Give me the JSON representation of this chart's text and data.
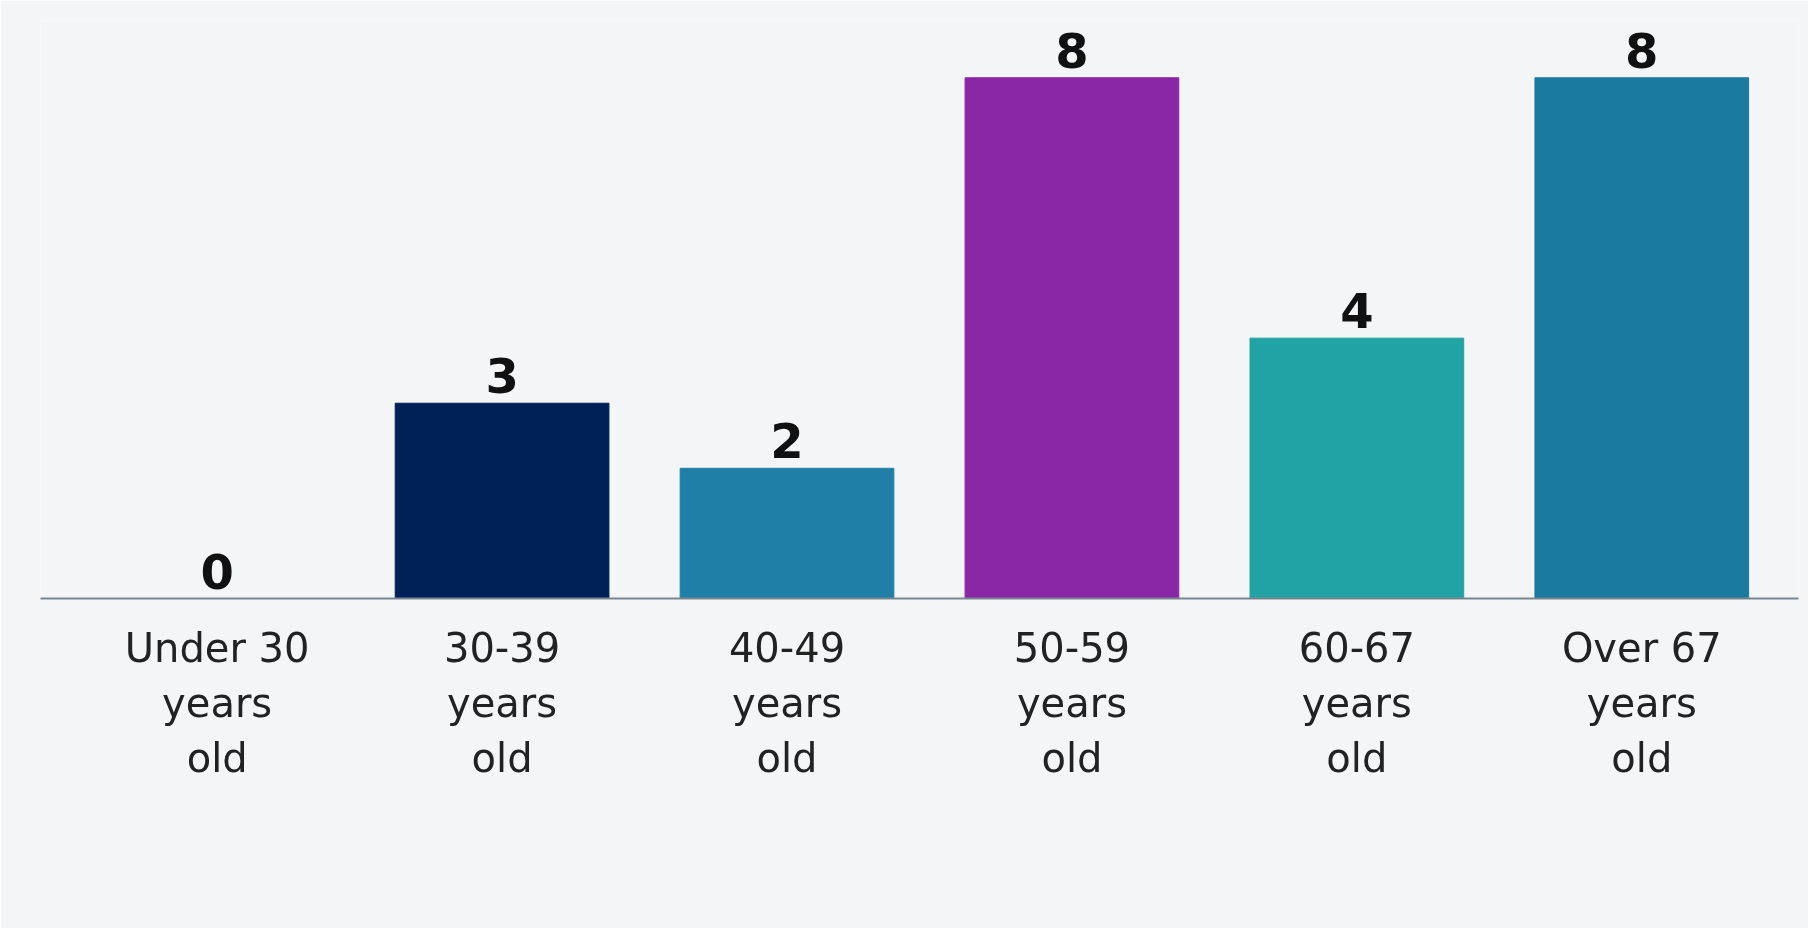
{
  "chart_data": {
    "type": "bar",
    "categories": [
      "Under 30 years old",
      "30-39 years old",
      "40-49 years old",
      "50-59 years old",
      "60-67 years old",
      "Over 67 years old"
    ],
    "values": [
      0,
      3,
      2,
      8,
      4,
      8
    ],
    "colors": [
      "#1f7fa6",
      "#002157",
      "#1f7fa6",
      "#8a27a6",
      "#22a3a3",
      "#1a7aa0"
    ],
    "data_labels": true,
    "grid": false
  }
}
